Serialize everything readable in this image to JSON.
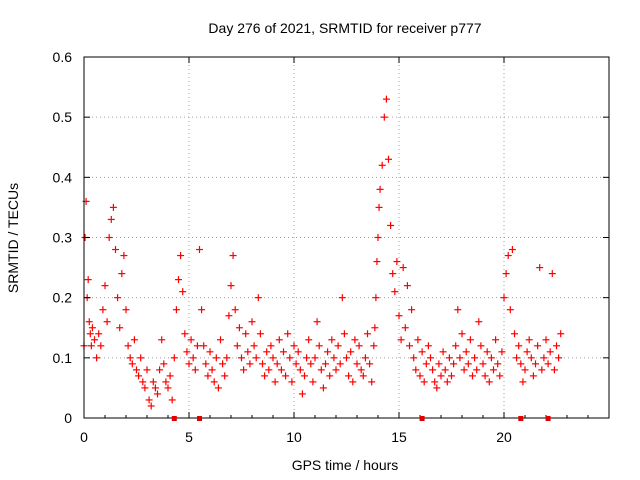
{
  "chart_data": {
    "type": "scatter",
    "title": "Day 276 of 2021, SRMTID for receiver p777",
    "xlabel": "GPS time / hours",
    "ylabel": "SRMTID / TECUs",
    "xlim": [
      0,
      25
    ],
    "ylim": [
      0,
      0.6
    ],
    "x_ticks": [
      0,
      5,
      10,
      15,
      20
    ],
    "y_ticks": [
      0,
      0.1,
      0.2,
      0.3,
      0.4,
      0.5,
      0.6
    ],
    "x_tick_labels": [
      "0",
      "5",
      "10",
      "15",
      "20"
    ],
    "y_tick_labels": [
      "0",
      "0.1",
      "0.2",
      "0.3",
      "0.4",
      "0.5",
      "0.6"
    ],
    "grid": true,
    "marker": "+",
    "color": "#ff0000",
    "series": [
      {
        "name": "SRMTID",
        "x": [
          0.0,
          0.05,
          0.1,
          0.15,
          0.2,
          0.25,
          0.3,
          0.35,
          0.4,
          0.5,
          0.6,
          0.7,
          0.8,
          0.9,
          1.0,
          1.1,
          1.2,
          1.3,
          1.4,
          1.5,
          1.6,
          1.7,
          1.8,
          1.9,
          2.0,
          2.1,
          2.2,
          2.3,
          2.4,
          2.5,
          2.6,
          2.7,
          2.8,
          2.9,
          3.0,
          3.1,
          3.2,
          3.3,
          3.4,
          3.5,
          3.6,
          3.7,
          3.8,
          3.9,
          4.0,
          4.1,
          4.2,
          4.3,
          4.4,
          4.5,
          4.6,
          4.7,
          4.8,
          4.9,
          5.0,
          5.1,
          5.2,
          5.3,
          5.4,
          5.5,
          5.6,
          5.7,
          5.8,
          5.9,
          6.0,
          6.1,
          6.2,
          6.3,
          6.4,
          6.5,
          6.6,
          6.7,
          6.8,
          6.9,
          7.0,
          7.1,
          7.2,
          7.3,
          7.4,
          7.5,
          7.6,
          7.7,
          7.8,
          7.9,
          8.0,
          8.1,
          8.2,
          8.3,
          8.4,
          8.5,
          8.6,
          8.7,
          8.8,
          8.9,
          9.0,
          9.1,
          9.2,
          9.3,
          9.4,
          9.5,
          9.6,
          9.7,
          9.8,
          9.9,
          10.0,
          10.1,
          10.2,
          10.3,
          10.4,
          10.5,
          10.6,
          10.7,
          10.8,
          10.9,
          11.0,
          11.1,
          11.2,
          11.3,
          11.4,
          11.5,
          11.6,
          11.7,
          11.8,
          11.9,
          12.0,
          12.1,
          12.2,
          12.3,
          12.4,
          12.5,
          12.6,
          12.7,
          12.8,
          12.9,
          13.0,
          13.1,
          13.2,
          13.3,
          13.4,
          13.5,
          13.6,
          13.7,
          13.8,
          13.85,
          13.9,
          13.95,
          14.0,
          14.05,
          14.1,
          14.2,
          14.3,
          14.4,
          14.5,
          14.6,
          14.7,
          14.8,
          14.9,
          15.0,
          15.1,
          15.2,
          15.3,
          15.4,
          15.5,
          15.6,
          15.7,
          15.8,
          15.9,
          16.0,
          16.1,
          16.2,
          16.3,
          16.4,
          16.5,
          16.6,
          16.7,
          16.8,
          16.9,
          17.0,
          17.1,
          17.2,
          17.3,
          17.4,
          17.5,
          17.6,
          17.7,
          17.8,
          17.9,
          18.0,
          18.1,
          18.2,
          18.3,
          18.4,
          18.5,
          18.6,
          18.7,
          18.8,
          18.9,
          19.0,
          19.1,
          19.2,
          19.3,
          19.4,
          19.5,
          19.6,
          19.7,
          19.8,
          19.9,
          20.0,
          20.1,
          20.2,
          20.3,
          20.4,
          20.5,
          20.6,
          20.7,
          20.8,
          20.9,
          21.0,
          21.1,
          21.2,
          21.3,
          21.4,
          21.5,
          21.6,
          21.7,
          21.8,
          21.9,
          22.0,
          22.1,
          22.2,
          22.3,
          22.4,
          22.5,
          22.6,
          22.7
        ],
        "y": [
          0.12,
          0.3,
          0.36,
          0.2,
          0.23,
          0.16,
          0.14,
          0.12,
          0.15,
          0.13,
          0.1,
          0.14,
          0.12,
          0.18,
          0.22,
          0.16,
          0.3,
          0.33,
          0.35,
          0.28,
          0.2,
          0.15,
          0.24,
          0.27,
          0.18,
          0.12,
          0.1,
          0.09,
          0.13,
          0.08,
          0.07,
          0.1,
          0.06,
          0.05,
          0.08,
          0.03,
          0.02,
          0.06,
          0.05,
          0.04,
          0.08,
          0.13,
          0.09,
          0.06,
          0.05,
          0.07,
          0.03,
          0.1,
          0.18,
          0.23,
          0.27,
          0.21,
          0.14,
          0.11,
          0.09,
          0.13,
          0.1,
          0.08,
          0.12,
          0.28,
          0.18,
          0.12,
          0.09,
          0.07,
          0.11,
          0.08,
          0.06,
          0.1,
          0.05,
          0.13,
          0.09,
          0.07,
          0.1,
          0.17,
          0.22,
          0.27,
          0.18,
          0.12,
          0.15,
          0.1,
          0.08,
          0.14,
          0.11,
          0.09,
          0.16,
          0.12,
          0.1,
          0.2,
          0.14,
          0.09,
          0.07,
          0.11,
          0.08,
          0.12,
          0.1,
          0.06,
          0.09,
          0.13,
          0.08,
          0.11,
          0.07,
          0.14,
          0.1,
          0.06,
          0.12,
          0.09,
          0.11,
          0.08,
          0.04,
          0.07,
          0.1,
          0.13,
          0.09,
          0.06,
          0.1,
          0.16,
          0.12,
          0.08,
          0.05,
          0.09,
          0.11,
          0.07,
          0.13,
          0.1,
          0.08,
          0.12,
          0.09,
          0.2,
          0.14,
          0.1,
          0.07,
          0.11,
          0.06,
          0.13,
          0.09,
          0.12,
          0.08,
          0.07,
          0.1,
          0.14,
          0.09,
          0.06,
          0.12,
          0.15,
          0.2,
          0.26,
          0.3,
          0.35,
          0.38,
          0.42,
          0.5,
          0.53,
          0.43,
          0.32,
          0.24,
          0.21,
          0.26,
          0.17,
          0.13,
          0.25,
          0.15,
          0.22,
          0.12,
          0.18,
          0.1,
          0.08,
          0.13,
          0.07,
          0.11,
          0.06,
          0.09,
          0.12,
          0.1,
          0.08,
          0.06,
          0.05,
          0.09,
          0.07,
          0.11,
          0.08,
          0.06,
          0.1,
          0.07,
          0.09,
          0.12,
          0.18,
          0.1,
          0.14,
          0.08,
          0.11,
          0.09,
          0.13,
          0.07,
          0.1,
          0.08,
          0.16,
          0.12,
          0.09,
          0.07,
          0.11,
          0.06,
          0.1,
          0.08,
          0.13,
          0.09,
          0.07,
          0.11,
          0.2,
          0.24,
          0.27,
          0.18,
          0.28,
          0.14,
          0.1,
          0.12,
          0.09,
          0.06,
          0.08,
          0.11,
          0.13,
          0.1,
          0.07,
          0.09,
          0.12,
          0.25,
          0.08,
          0.1,
          0.13,
          0.09,
          0.11,
          0.24,
          0.08,
          0.12,
          0.1,
          0.14
        ]
      }
    ],
    "time_markers_hours": [
      4.3,
      5.5,
      16.1,
      20.8,
      22.1
    ]
  }
}
